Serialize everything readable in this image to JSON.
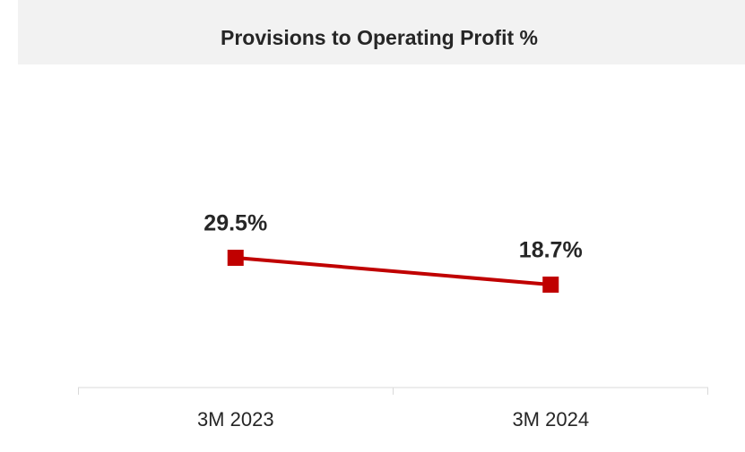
{
  "chart_data": {
    "type": "line",
    "title": "Provisions to Operating Profit %",
    "categories": [
      "3M 2023",
      "3M 2024"
    ],
    "series": [
      {
        "color": "#c00000",
        "values": [
          29.5,
          18.7
        ],
        "value_labels": [
          "29.5%",
          "18.7%"
        ]
      }
    ]
  }
}
